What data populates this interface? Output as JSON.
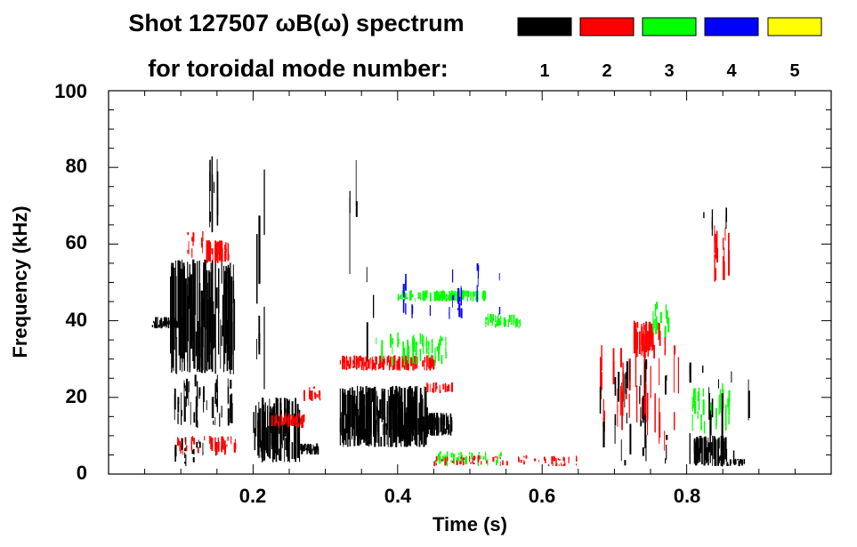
{
  "chart_data": {
    "type": "spectrogram",
    "title_line1": "Shot 127507 ωB(ω) spectrum",
    "title_line2": "for toroidal mode number:",
    "xlabel": "Time (s)",
    "ylabel": "Frequency (kHz)",
    "xlim": [
      0.0,
      1.0
    ],
    "ylim": [
      0,
      100
    ],
    "x_ticks": [
      0.2,
      0.4,
      0.6,
      0.8
    ],
    "x_tick_labels": [
      "0.2",
      "0.4",
      "0.6",
      "0.8"
    ],
    "y_ticks": [
      0,
      20,
      40,
      60,
      80,
      100
    ],
    "y_tick_labels": [
      "0",
      "20",
      "40",
      "60",
      "80",
      "100"
    ],
    "legend": [
      {
        "label": "1",
        "color": "#000000"
      },
      {
        "label": "2",
        "color": "#ff0000"
      },
      {
        "label": "3",
        "color": "#00ff00"
      },
      {
        "label": "4",
        "color": "#0000ff"
      },
      {
        "label": "5",
        "color": "#ffff00"
      }
    ],
    "regions": [
      {
        "mode": 1,
        "t": [
          0.06,
          0.1
        ],
        "f": [
          38,
          41
        ],
        "density": 1.0
      },
      {
        "mode": 1,
        "t": [
          0.085,
          0.175
        ],
        "f": [
          26,
          56
        ],
        "density": 0.85
      },
      {
        "mode": 1,
        "t": [
          0.085,
          0.175
        ],
        "f": [
          12,
          26
        ],
        "density": 0.25
      },
      {
        "mode": 1,
        "t": [
          0.135,
          0.15
        ],
        "f": [
          62,
          84
        ],
        "density": 0.45
      },
      {
        "mode": 1,
        "t": [
          0.09,
          0.18
        ],
        "f": [
          2,
          10
        ],
        "density": 0.15
      },
      {
        "mode": 2,
        "t": [
          0.135,
          0.165
        ],
        "f": [
          55,
          61
        ],
        "density": 0.75
      },
      {
        "mode": 2,
        "t": [
          0.1,
          0.13
        ],
        "f": [
          56,
          64
        ],
        "density": 0.25
      },
      {
        "mode": 2,
        "t": [
          0.095,
          0.175
        ],
        "f": [
          5,
          10
        ],
        "density": 0.45
      },
      {
        "mode": 1,
        "t": [
          0.2,
          0.265
        ],
        "f": [
          3,
          20
        ],
        "density": 0.85
      },
      {
        "mode": 1,
        "t": [
          0.265,
          0.29
        ],
        "f": [
          5,
          8
        ],
        "density": 0.7
      },
      {
        "mode": 1,
        "t": [
          0.2,
          0.215
        ],
        "f": [
          20,
          80
        ],
        "density": 0.2
      },
      {
        "mode": 2,
        "t": [
          0.225,
          0.27
        ],
        "f": [
          12,
          16
        ],
        "density": 0.55
      },
      {
        "mode": 2,
        "t": [
          0.27,
          0.295
        ],
        "f": [
          19,
          23
        ],
        "density": 0.5
      },
      {
        "mode": 1,
        "t": [
          0.32,
          0.44
        ],
        "f": [
          7,
          23
        ],
        "density": 0.9
      },
      {
        "mode": 1,
        "t": [
          0.44,
          0.475
        ],
        "f": [
          10,
          16
        ],
        "density": 0.85
      },
      {
        "mode": 1,
        "t": [
          0.32,
          0.37
        ],
        "f": [
          23,
          88
        ],
        "density": 0.12
      },
      {
        "mode": 2,
        "t": [
          0.32,
          0.45
        ],
        "f": [
          27,
          31
        ],
        "density": 0.7
      },
      {
        "mode": 2,
        "t": [
          0.44,
          0.475
        ],
        "f": [
          21,
          24
        ],
        "density": 0.6
      },
      {
        "mode": 3,
        "t": [
          0.4,
          0.52
        ],
        "f": [
          45,
          48
        ],
        "density": 0.7
      },
      {
        "mode": 3,
        "t": [
          0.52,
          0.57
        ],
        "f": [
          38,
          42
        ],
        "density": 0.4
      },
      {
        "mode": 3,
        "t": [
          0.37,
          0.47
        ],
        "f": [
          28,
          37
        ],
        "density": 0.3
      },
      {
        "mode": 3,
        "t": [
          0.45,
          0.55
        ],
        "f": [
          2,
          6
        ],
        "density": 0.3
      },
      {
        "mode": 4,
        "t": [
          0.4,
          0.57
        ],
        "f": [
          40,
          55
        ],
        "density": 0.05
      },
      {
        "mode": 2,
        "t": [
          0.45,
          0.65
        ],
        "f": [
          2,
          5
        ],
        "density": 0.18
      },
      {
        "mode": 2,
        "t": [
          0.725,
          0.77
        ],
        "f": [
          30,
          40
        ],
        "density": 0.55
      },
      {
        "mode": 2,
        "t": [
          0.68,
          0.79
        ],
        "f": [
          6,
          34
        ],
        "density": 0.2
      },
      {
        "mode": 3,
        "t": [
          0.75,
          0.775
        ],
        "f": [
          35,
          45
        ],
        "density": 0.25
      },
      {
        "mode": 1,
        "t": [
          0.81,
          0.855
        ],
        "f": [
          2,
          10
        ],
        "density": 0.8
      },
      {
        "mode": 1,
        "t": [
          0.855,
          0.88
        ],
        "f": [
          2,
          4
        ],
        "density": 0.5
      },
      {
        "mode": 1,
        "t": [
          0.82,
          0.86
        ],
        "f": [
          58,
          72
        ],
        "density": 0.15
      },
      {
        "mode": 2,
        "t": [
          0.835,
          0.86
        ],
        "f": [
          50,
          65
        ],
        "density": 0.25
      },
      {
        "mode": 3,
        "t": [
          0.8,
          0.88
        ],
        "f": [
          10,
          25
        ],
        "density": 0.15
      },
      {
        "mode": 1,
        "t": [
          0.65,
          0.89
        ],
        "f": [
          2,
          30
        ],
        "density": 0.07
      }
    ]
  }
}
